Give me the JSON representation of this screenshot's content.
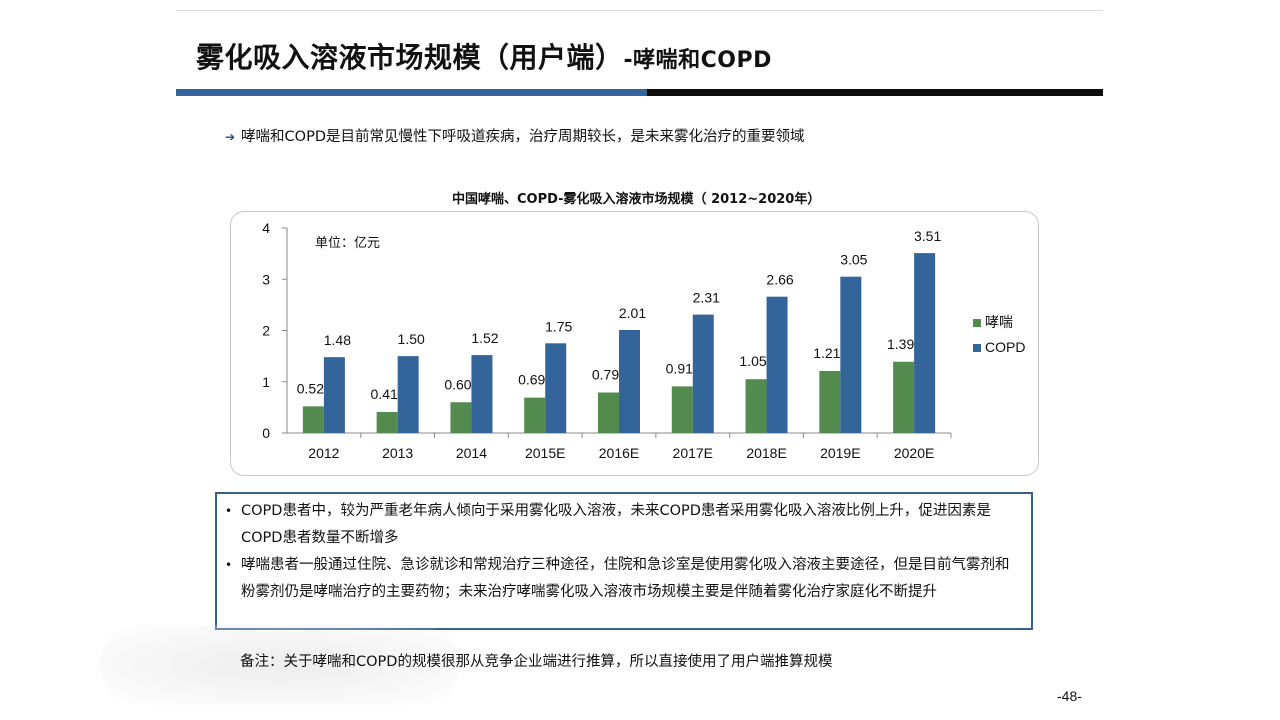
{
  "slide": {
    "title_main": "雾化吸入溶液市场规模（用户端）",
    "title_sub": "-哮喘和COPD",
    "bullet": "哮喘和COPD是目前常见慢性下呼吸道疾病，治疗周期较长，是未来雾化治疗的重要领域",
    "bullet_icon": "arrow-right-icon",
    "info_points": [
      "COPD患者中，较为严重老年病人倾向于采用雾化吸入溶液，未来COPD患者采用雾化吸入溶液比例上升，促进因素是COPD患者数量不断增多",
      "哮喘患者一般通过住院、急诊就诊和常规治疗三种途径，住院和急诊室是使用雾化吸入溶液主要途径，但是目前气雾剂和粉雾剂仍是哮喘治疗的主要药物；未来治疗哮喘雾化吸入溶液市场规模主要是伴随着雾化治疗家庭化不断提升"
    ],
    "info_bullet_glyph": "•",
    "note": "备注：关于哮喘和COPD的规模很那从竞争企业端进行推算，所以直接使用了用户端推算规模",
    "page_number": "-48-"
  },
  "chart_data": {
    "type": "bar",
    "title": "中国哮喘、COPD-雾化吸入溶液市场规模（ 2012~2020年）",
    "unit_label": "单位：亿元",
    "categories": [
      "2012",
      "2013",
      "2014",
      "2015E",
      "2016E",
      "2017E",
      "2018E",
      "2019E",
      "2020E"
    ],
    "series": [
      {
        "name": "哮喘",
        "color": "#538b4f",
        "values": [
          0.52,
          0.41,
          0.6,
          0.69,
          0.79,
          0.91,
          1.05,
          1.21,
          1.39
        ],
        "labels": [
          "0.52",
          "0.41",
          "0.60",
          "0.69",
          "0.79",
          "0.91",
          "1.05",
          "1.21",
          "1.39"
        ]
      },
      {
        "name": "COPD",
        "color": "#33649a",
        "values": [
          1.48,
          1.5,
          1.52,
          1.75,
          2.01,
          2.31,
          2.66,
          3.05,
          3.51
        ],
        "labels": [
          "1.48",
          "1.50",
          "1.52",
          "1.75",
          "2.01",
          "2.31",
          "2.66",
          "3.05",
          "3.51"
        ]
      }
    ],
    "ylim": [
      0,
      4
    ],
    "yticks": [
      "0",
      "1",
      "2",
      "3",
      "4"
    ],
    "grid": false,
    "legend_position": "right"
  },
  "colors": {
    "accent_blue": "#33649a",
    "accent_black": "#0d0d0d",
    "box_border": "#35608f"
  }
}
